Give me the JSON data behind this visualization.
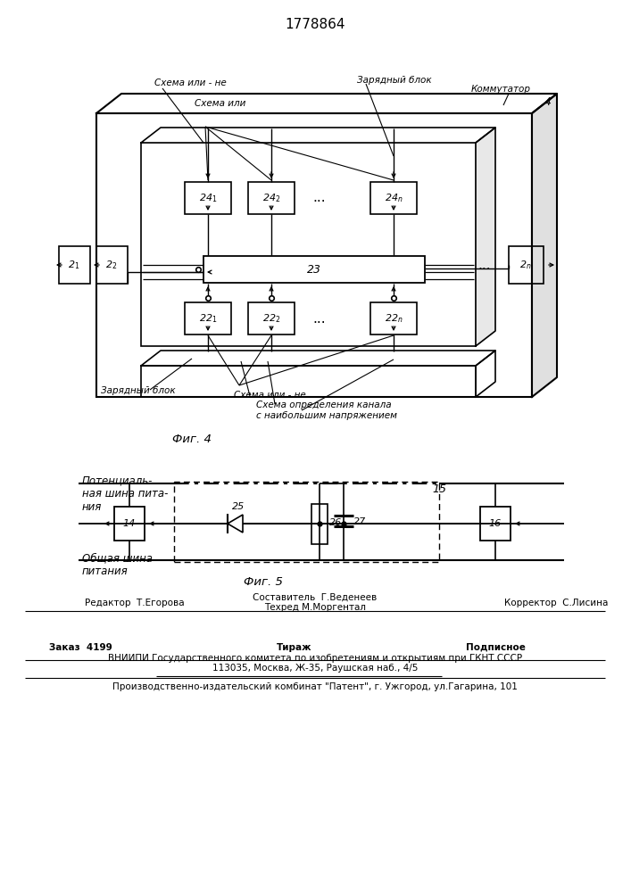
{
  "title": "1778864",
  "fig4_label": "Фиг. 4",
  "fig5_label": "Фиг. 5",
  "label_schema_ili_ne_top": "Схема или - не",
  "label_schema_ili": "Схема или",
  "label_zaryadny_blok_top": "Зарядный блок",
  "label_kommutator": "Коммутатор",
  "label_zaryadny_blok_bot": "Зарядный блок",
  "label_schema_ili_ne_bot": "Схема или - не",
  "label_schema_opred": "Схема определения канала",
  "label_schema_opred2": "с наибольшим напряжением",
  "label_poten": "Потенциаль-\nная шина пита-\nния",
  "label_obsh": "Общая шина\nпитания",
  "footer_editor": "Редактор  Т.Егорова",
  "footer_sostavitel": "Составитель  Г.Веденеев",
  "footer_korrektor": "Корректор  С.Лисина",
  "footer_tekhred": "Техред М.Моргентал",
  "footer_zakaz": "Заказ  4199",
  "footer_tirazh": "Тираж",
  "footer_podpisnoe": "Подписное",
  "footer_vniiipi": "ВНИИПИ Государственного комитета по изобретениям и открытиям при ГКНТ СССР",
  "footer_address": "113035, Москва, Ж-35, Раушская наб., 4/5",
  "footer_patent": "Производственно-издательский комбинат \"Патент\", г. Ужгород, ул.Гагарина, 101"
}
